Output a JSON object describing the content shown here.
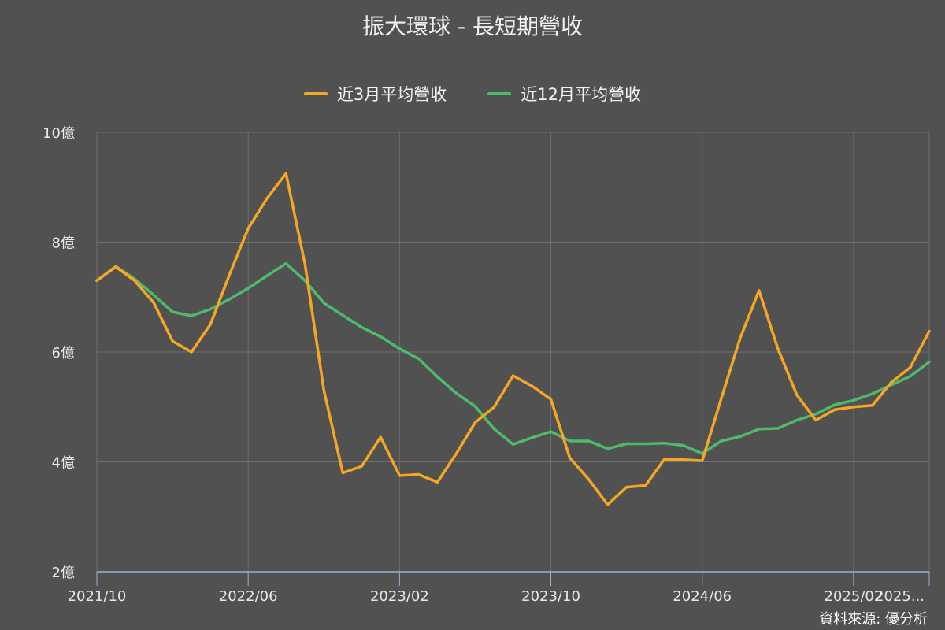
{
  "chart_data": {
    "type": "line",
    "title": "振大環球 - 長短期營收",
    "source": "資料來源: 優分析",
    "ylim": [
      2,
      10
    ],
    "yticks": [
      {
        "value": 2,
        "label": "2億"
      },
      {
        "value": 4,
        "label": "4億"
      },
      {
        "value": 6,
        "label": "6億"
      },
      {
        "value": 8,
        "label": "8億"
      },
      {
        "value": 10,
        "label": "10億"
      }
    ],
    "x": [
      "2021/10",
      "2021/11",
      "2021/12",
      "2022/01",
      "2022/02",
      "2022/03",
      "2022/04",
      "2022/05",
      "2022/06",
      "2022/07",
      "2022/08",
      "2022/09",
      "2022/10",
      "2022/11",
      "2022/12",
      "2023/01",
      "2023/02",
      "2023/03",
      "2023/04",
      "2023/05",
      "2023/06",
      "2023/07",
      "2023/08",
      "2023/09",
      "2023/10",
      "2023/11",
      "2023/12",
      "2024/01",
      "2024/02",
      "2024/03",
      "2024/04",
      "2024/05",
      "2024/06",
      "2024/07",
      "2024/08",
      "2024/09",
      "2024/10",
      "2024/11",
      "2024/12",
      "2025/01",
      "2025/02",
      "2025/03",
      "2025/04",
      "2025/05",
      "2025/06"
    ],
    "xticks": [
      {
        "value": "2021/10",
        "label": "2021/10"
      },
      {
        "value": "2022/06",
        "label": "2022/06"
      },
      {
        "value": "2023/02",
        "label": "2023/02"
      },
      {
        "value": "2023/10",
        "label": "2023/10"
      },
      {
        "value": "2024/06",
        "label": "2024/06"
      },
      {
        "value": "2025/02",
        "label": "2025/02"
      },
      {
        "value": "2025/06",
        "label": "2025..."
      }
    ],
    "grid": true,
    "legend_position": "top-center",
    "series": [
      {
        "name": "近3月平均營收",
        "color": "#f5a623",
        "values": [
          7.3,
          7.55,
          7.3,
          6.9,
          6.2,
          6.0,
          6.5,
          7.4,
          8.25,
          8.8,
          9.25,
          7.6,
          5.3,
          3.8,
          3.92,
          4.45,
          3.75,
          3.77,
          3.63,
          4.15,
          4.72,
          5.0,
          5.57,
          5.38,
          5.14,
          4.07,
          3.68,
          3.22,
          3.54,
          3.57,
          4.05,
          4.04,
          4.02,
          5.15,
          6.25,
          7.12,
          6.06,
          5.22,
          4.76,
          4.95,
          5.0,
          5.03,
          5.45,
          5.72,
          6.38
        ]
      },
      {
        "name": "近12月平均營收",
        "color": "#4dbb6a",
        "values": [
          7.3,
          7.56,
          7.33,
          7.04,
          6.73,
          6.66,
          6.78,
          6.96,
          7.16,
          7.39,
          7.61,
          7.3,
          6.89,
          6.67,
          6.45,
          6.28,
          6.06,
          5.88,
          5.55,
          5.25,
          5.01,
          4.6,
          4.32,
          4.44,
          4.55,
          4.38,
          4.38,
          4.24,
          4.33,
          4.33,
          4.34,
          4.3,
          4.15,
          4.38,
          4.46,
          4.6,
          4.61,
          4.76,
          4.87,
          5.04,
          5.12,
          5.24,
          5.4,
          5.56,
          5.82
        ]
      }
    ]
  }
}
